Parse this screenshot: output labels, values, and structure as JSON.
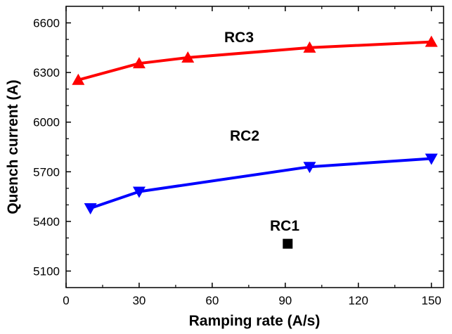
{
  "chart_data": {
    "type": "line",
    "title": "",
    "xlabel": "Ramping rate  (A/s)",
    "ylabel": "Quench current  (A)",
    "xlim": [
      0,
      155
    ],
    "ylim": [
      5000,
      6700
    ],
    "x_ticks": [
      0,
      30,
      60,
      90,
      120,
      150
    ],
    "y_ticks": [
      5100,
      5400,
      5700,
      6000,
      6300,
      6600
    ],
    "x_tick_labels": [
      "0",
      "30",
      "60",
      "90",
      "120",
      "150"
    ],
    "y_tick_labels": [
      "5100",
      "5400",
      "5700",
      "6000",
      "6300",
      "6600"
    ],
    "grid": false,
    "legend": "none",
    "series": [
      {
        "name": "RC3",
        "color": "#ff0000",
        "marker": "triangle-up",
        "x": [
          5,
          30,
          50,
          100,
          150
        ],
        "y": [
          6255,
          6355,
          6390,
          6450,
          6485
        ]
      },
      {
        "name": "RC2",
        "color": "#0000ff",
        "marker": "triangle-down",
        "x": [
          10,
          30,
          100,
          150
        ],
        "y": [
          5480,
          5580,
          5730,
          5780
        ]
      },
      {
        "name": "RC1",
        "color": "#000000",
        "marker": "square",
        "x": [
          91
        ],
        "y": [
          5265
        ]
      }
    ]
  }
}
